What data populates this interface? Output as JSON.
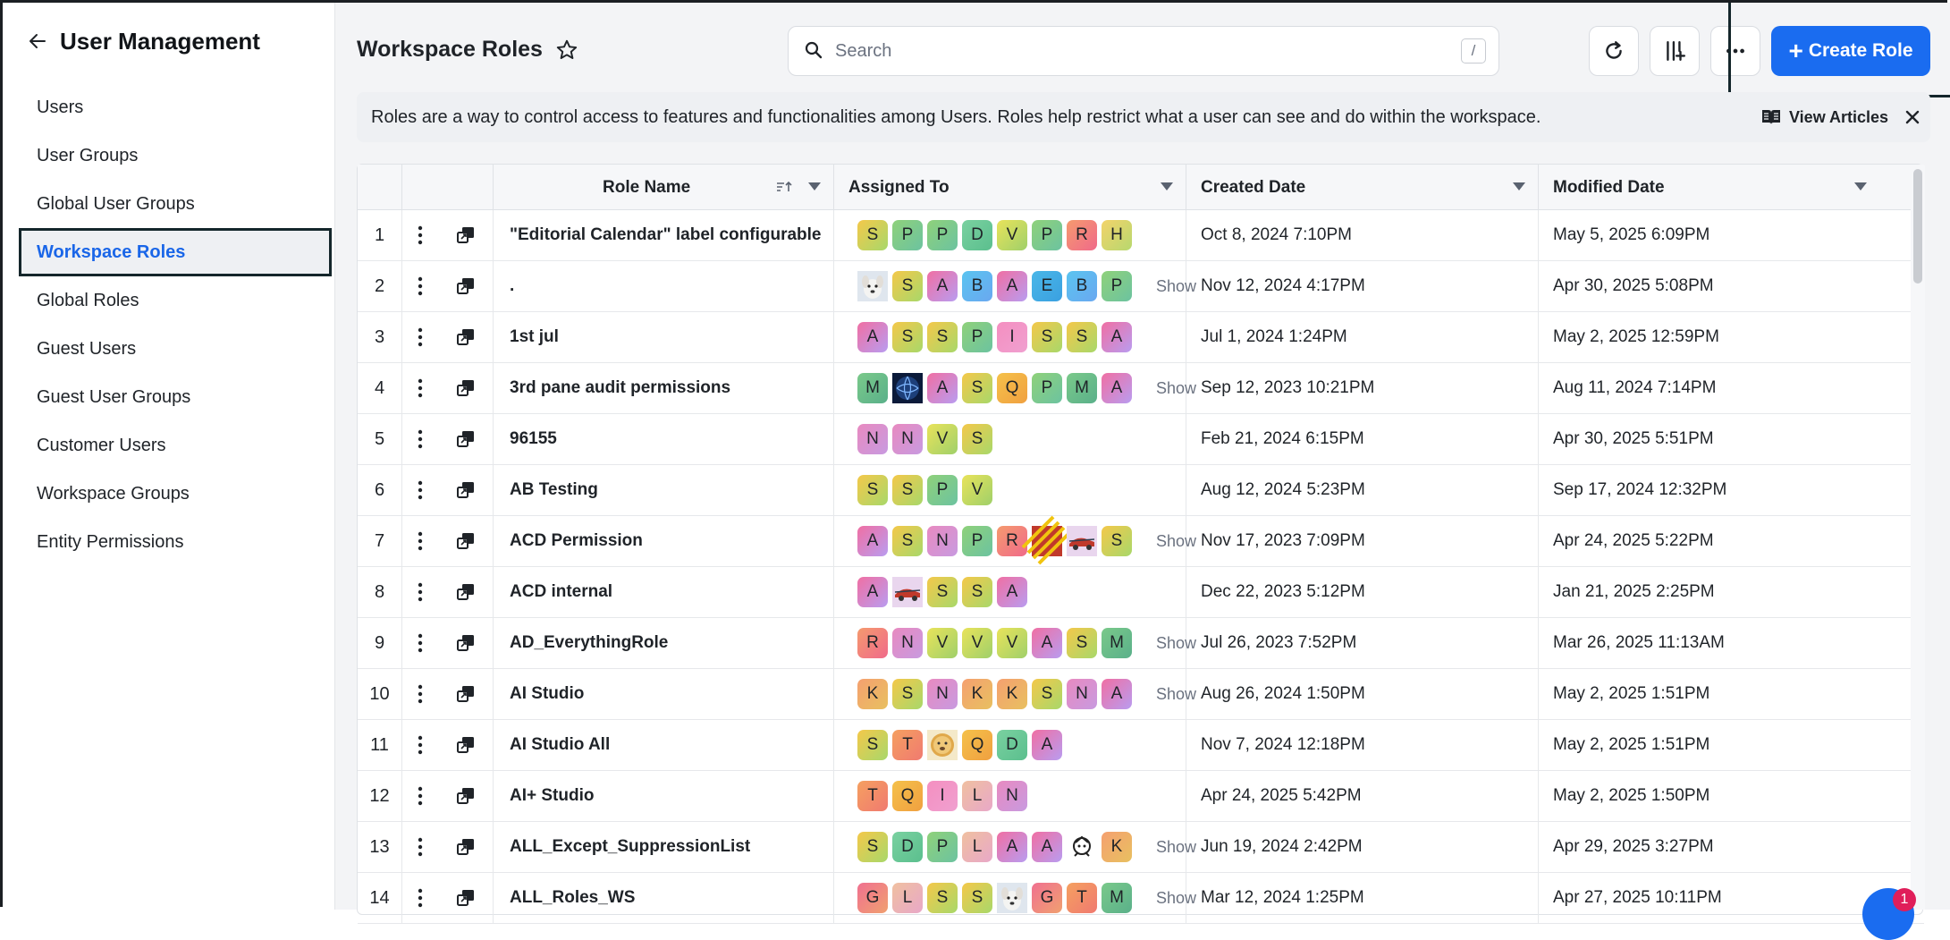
{
  "sidebar": {
    "title": "User Management",
    "items": [
      {
        "label": "Users"
      },
      {
        "label": "User Groups"
      },
      {
        "label": "Global User Groups"
      },
      {
        "label": "Workspace Roles",
        "active": true
      },
      {
        "label": "Global Roles"
      },
      {
        "label": "Guest Users"
      },
      {
        "label": "Guest User Groups"
      },
      {
        "label": "Customer Users"
      },
      {
        "label": "Workspace Groups"
      },
      {
        "label": "Entity Permissions"
      }
    ]
  },
  "header": {
    "title": "Workspace Roles",
    "search_placeholder": "Search",
    "search_shortcut": "/",
    "create_label": "Create Role"
  },
  "banner": {
    "text": "Roles are a way to control access to features and functionalities among Users. Roles help restrict what a user can see and do within the workspace.",
    "link_label": "View Articles"
  },
  "table": {
    "columns": {
      "role_name": "Role Name",
      "assigned_to": "Assigned To",
      "created_date": "Created Date",
      "modified_date": "Modified Date"
    },
    "show_more_label": "Show",
    "rows": [
      {
        "num": "1",
        "role": "\"Editorial Calendar\" label configurable",
        "avatars": [
          "S",
          "P",
          "P",
          "D",
          "V",
          "P",
          "R",
          "H"
        ],
        "more": false,
        "created": "Oct 8, 2024 7:10PM",
        "modified": "May 5, 2025 6:09PM"
      },
      {
        "num": "2",
        "role": ".",
        "avatars": [
          "#img-dog",
          "S",
          "A",
          "B",
          "A",
          "E",
          "B",
          "P"
        ],
        "more": true,
        "created": "Nov 12, 2024 4:17PM",
        "modified": "Apr 30, 2025 5:08PM"
      },
      {
        "num": "3",
        "role": "1st jul",
        "avatars": [
          "A",
          "S",
          "S",
          "P",
          "I",
          "S",
          "S",
          "A"
        ],
        "more": false,
        "created": "Jul 1, 2024 1:24PM",
        "modified": "May 2, 2025 12:59PM"
      },
      {
        "num": "4",
        "role": "3rd pane audit permissions",
        "avatars": [
          "M",
          "#img-globe",
          "A",
          "S",
          "Q",
          "P",
          "M",
          "A"
        ],
        "more": true,
        "created": "Sep 12, 2023 10:21PM",
        "modified": "Aug 11, 2024 7:14PM"
      },
      {
        "num": "5",
        "role": "96155",
        "avatars": [
          "N",
          "N",
          "V",
          "S"
        ],
        "more": false,
        "created": "Feb 21, 2024 6:15PM",
        "modified": "Apr 30, 2025 5:51PM"
      },
      {
        "num": "6",
        "role": "AB Testing",
        "avatars": [
          "S",
          "S",
          "P",
          "V"
        ],
        "more": false,
        "created": "Aug 12, 2024 5:23PM",
        "modified": "Sep 17, 2024 12:32PM"
      },
      {
        "num": "7",
        "role": "ACD Permission",
        "avatars": [
          "A",
          "S",
          "N",
          "P",
          "R",
          "#img-stripes",
          "#img-car",
          "S"
        ],
        "more": true,
        "created": "Nov 17, 2023 7:09PM",
        "modified": "Apr 24, 2025 5:22PM"
      },
      {
        "num": "8",
        "role": "ACD internal",
        "avatars": [
          "A",
          "#img-car",
          "S",
          "S",
          "A"
        ],
        "more": false,
        "created": "Dec 22, 2023 5:12PM",
        "modified": "Jan 21, 2025 2:25PM"
      },
      {
        "num": "9",
        "role": "AD_EverythingRole",
        "avatars": [
          "R",
          "N",
          "V",
          "V",
          "V",
          "A",
          "S",
          "M"
        ],
        "more": true,
        "created": "Jul 26, 2023 7:52PM",
        "modified": "Mar 26, 2025 11:13AM"
      },
      {
        "num": "10",
        "role": "AI Studio",
        "avatars": [
          "K",
          "S",
          "N",
          "K",
          "K",
          "S",
          "N",
          "A"
        ],
        "more": true,
        "created": "Aug 26, 2024 1:50PM",
        "modified": "May 2, 2025 1:51PM"
      },
      {
        "num": "11",
        "role": "AI Studio All",
        "avatars": [
          "S",
          "T",
          "#img-doge",
          "Q",
          "D",
          "A"
        ],
        "more": false,
        "created": "Nov 7, 2024 12:18PM",
        "modified": "May 2, 2025 1:51PM"
      },
      {
        "num": "12",
        "role": "AI+ Studio",
        "avatars": [
          "T",
          "Q",
          "I",
          "L",
          "N"
        ],
        "more": false,
        "created": "Apr 24, 2025 5:42PM",
        "modified": "May 2, 2025 1:50PM"
      },
      {
        "num": "13",
        "role": "ALL_Except_SuppressionList",
        "avatars": [
          "S",
          "D",
          "P",
          "L",
          "A",
          "A",
          "#img-mascot",
          "K"
        ],
        "more": true,
        "created": "Jun 19, 2024 2:42PM",
        "modified": "Apr 29, 2025 3:27PM"
      },
      {
        "num": "14",
        "role": "ALL_Roles_WS",
        "avatars": [
          "G",
          "L",
          "S",
          "S",
          "#img-dog",
          "G",
          "T",
          "M"
        ],
        "more": true,
        "created": "Mar 12, 2024 1:25PM",
        "modified": "Apr 27, 2025 10:11PM"
      }
    ]
  },
  "notifications": {
    "count": "1"
  },
  "colors": {
    "accent": "#1a6cf0",
    "active_nav_text": "#1a66e8",
    "avatar_gradients": {
      "A": [
        "#f06fa3",
        "#b99cf0"
      ],
      "S": [
        "#f4c84a",
        "#a8d86a"
      ],
      "P": [
        "#8fd17a",
        "#6cc3a0"
      ],
      "D": [
        "#7ad1a0",
        "#5bbf8e"
      ],
      "V": [
        "#e9e35a",
        "#9fd06a"
      ],
      "R": [
        "#f59a6e",
        "#f06a8a"
      ],
      "H": [
        "#f3d36a",
        "#b7d86f"
      ],
      "B": [
        "#5ac4f0",
        "#6aa8f0"
      ],
      "E": [
        "#4ab7e8",
        "#3aa0e0"
      ],
      "I": [
        "#f48fc0",
        "#f0a0d0"
      ],
      "M": [
        "#7ac98a",
        "#5ab08a"
      ],
      "Q": [
        "#f5c14a",
        "#f0a040"
      ],
      "N": [
        "#e88ac0",
        "#c89ae0"
      ],
      "K": [
        "#f5a070",
        "#e8c060"
      ],
      "T": [
        "#f5a060",
        "#f07a70"
      ],
      "L": [
        "#f0c0a0",
        "#e8a8c8"
      ],
      "G": [
        "#f07090",
        "#f0a070"
      ]
    }
  }
}
